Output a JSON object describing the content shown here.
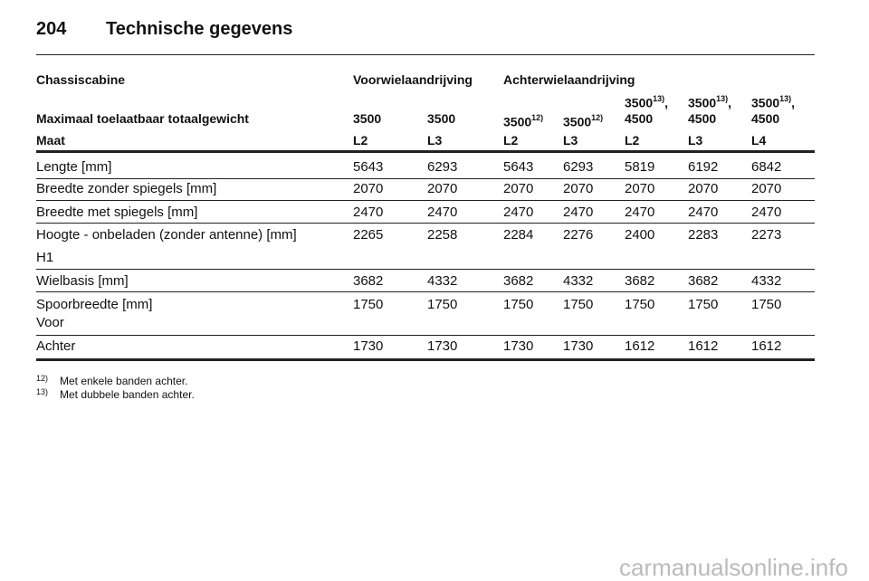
{
  "header": {
    "page": "204",
    "title": "Technische gegevens"
  },
  "table": {
    "corner": "Chassiscabine",
    "groups": [
      "Voorwielaandrijving",
      "Achterwielaandrijving"
    ],
    "weight_row": {
      "label": "Maximaal toelaatbaar totaalgewicht",
      "cells": [
        {
          "text": "3500"
        },
        {
          "text": "3500"
        },
        {
          "text": "3500",
          "note": "12)"
        },
        {
          "text": "3500",
          "note": "12)"
        },
        {
          "text": "3500",
          "note": "13)",
          "after": ",",
          "line2": "4500"
        },
        {
          "text": "3500",
          "note": "13)",
          "after": ",",
          "line2": "4500"
        },
        {
          "text": "3500",
          "note": "13)",
          "after": ",",
          "line2": "4500"
        }
      ]
    },
    "maat_row": {
      "label": "Maat",
      "cells": [
        "L2",
        "L3",
        "L2",
        "L3",
        "L2",
        "L3",
        "L4"
      ]
    },
    "rows": [
      {
        "label": "Lengte [mm]",
        "values": [
          5643,
          6293,
          5643,
          6293,
          5819,
          6192,
          6842
        ]
      },
      {
        "label": "Breedte zonder spiegels [mm]",
        "values": [
          2070,
          2070,
          2070,
          2070,
          2070,
          2070,
          2070
        ]
      },
      {
        "label": "Breedte met spiegels [mm]",
        "values": [
          2470,
          2470,
          2470,
          2470,
          2470,
          2470,
          2470
        ]
      },
      {
        "label": "Hoogte - onbeladen (zonder antenne) [mm]",
        "sublabel": "H1",
        "values": [
          2265,
          2258,
          2284,
          2276,
          2400,
          2283,
          2273
        ]
      },
      {
        "label": "Wielbasis [mm]",
        "values": [
          3682,
          4332,
          3682,
          4332,
          3682,
          3682,
          4332
        ]
      },
      {
        "label": "Spoorbreedte [mm]",
        "sublabel": "Voor",
        "values": [
          1750,
          1750,
          1750,
          1750,
          1750,
          1750,
          1750
        ]
      },
      {
        "label": "Achter",
        "values": [
          1730,
          1730,
          1730,
          1730,
          1612,
          1612,
          1612
        ]
      }
    ]
  },
  "footnotes": [
    {
      "mark": "12)",
      "text": "Met enkele banden achter."
    },
    {
      "mark": "13)",
      "text": "Met dubbele banden achter."
    }
  ],
  "watermark": "carmanualsonline.info"
}
